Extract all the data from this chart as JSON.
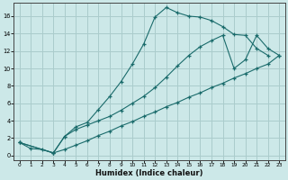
{
  "xlabel": "Humidex (Indice chaleur)",
  "bg_color": "#cce8e8",
  "grid_color": "#aacccc",
  "line_color": "#1a6b6b",
  "xlim": [
    -0.5,
    23.5
  ],
  "ylim": [
    -0.5,
    17.5
  ],
  "xticks": [
    0,
    1,
    2,
    3,
    4,
    5,
    6,
    7,
    8,
    9,
    10,
    11,
    12,
    13,
    14,
    15,
    16,
    17,
    18,
    19,
    20,
    21,
    22,
    23
  ],
  "yticks": [
    0,
    2,
    4,
    6,
    8,
    10,
    12,
    14,
    16
  ],
  "line1_x": [
    0,
    1,
    2,
    3,
    4,
    5,
    6,
    7,
    8,
    9,
    10,
    11,
    12,
    13,
    14,
    15,
    16,
    17,
    18,
    19,
    20,
    21,
    22
  ],
  "line1_y": [
    1.5,
    0.8,
    0.7,
    0.3,
    2.2,
    3.3,
    3.8,
    5.3,
    6.8,
    8.5,
    10.5,
    12.8,
    15.9,
    17.0,
    16.4,
    16.0,
    15.9,
    15.5,
    14.8,
    13.9,
    13.8,
    12.3,
    11.5
  ],
  "line2_x": [
    0,
    3,
    4,
    5,
    6,
    7,
    8,
    9,
    10,
    11,
    12,
    13,
    14,
    15,
    16,
    17,
    18,
    19,
    20,
    21,
    22,
    23
  ],
  "line2_y": [
    1.5,
    0.3,
    0.7,
    1.2,
    1.7,
    2.3,
    2.8,
    3.4,
    3.9,
    4.5,
    5.0,
    5.6,
    6.1,
    6.7,
    7.2,
    7.8,
    8.3,
    8.9,
    9.4,
    10.0,
    10.5,
    11.5
  ],
  "line3_x": [
    0,
    3,
    4,
    5,
    6,
    7,
    8,
    9,
    10,
    11,
    12,
    13,
    14,
    15,
    16,
    17,
    18,
    19,
    20,
    21,
    22,
    23
  ],
  "line3_y": [
    1.5,
    0.3,
    2.2,
    3.0,
    3.5,
    4.0,
    4.5,
    5.2,
    6.0,
    6.8,
    7.8,
    9.0,
    10.3,
    11.5,
    12.5,
    13.2,
    13.8,
    10.0,
    11.0,
    13.8,
    12.3,
    11.5
  ]
}
